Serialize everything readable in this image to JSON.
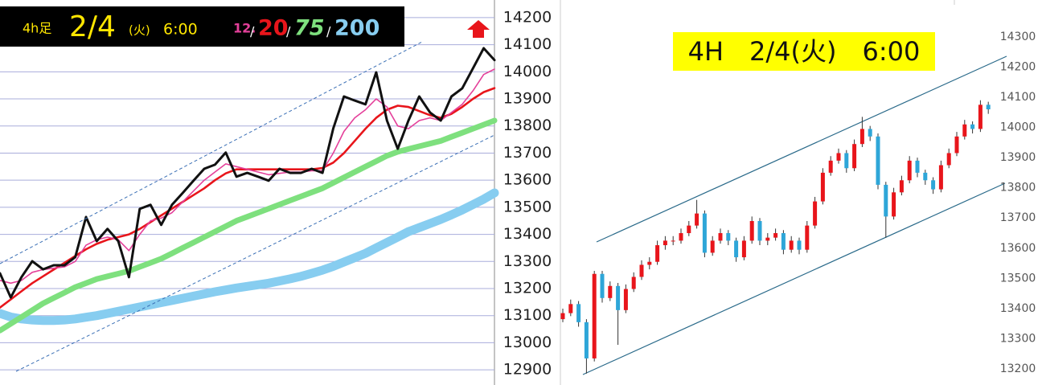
{
  "chart_data": [
    {
      "type": "line",
      "title_label": "4h足",
      "title_date": "2/4",
      "title_weekday": "(火)",
      "title_time": "6:00",
      "legend_separator": "/",
      "ylim": [
        12844,
        14265
      ],
      "yticks": [
        12900,
        13000,
        13100,
        13200,
        13300,
        13400,
        13500,
        13600,
        13700,
        13800,
        13900,
        14000,
        14100,
        14200
      ],
      "grid": true,
      "series": [
        {
          "color": "#111111",
          "values": [
            13256,
            13167,
            13242,
            13301,
            13271,
            13286,
            13286,
            13316,
            13464,
            13375,
            13420,
            13375,
            13242,
            13494,
            13509,
            13435,
            13509,
            13553,
            13598,
            13642,
            13657,
            13702,
            13613,
            13627,
            13613,
            13598,
            13642,
            13627,
            13627,
            13642,
            13627,
            13791,
            13909,
            13894,
            13880,
            13998,
            13820,
            13716,
            13820,
            13909,
            13850,
            13820,
            13909,
            13939,
            14013,
            14087,
            14043
          ]
        },
        {
          "name": "12.",
          "color": "#e4409a",
          "values": [
            13230,
            13220,
            13230,
            13260,
            13270,
            13275,
            13280,
            13300,
            13360,
            13380,
            13390,
            13380,
            13340,
            13400,
            13450,
            13460,
            13480,
            13520,
            13560,
            13600,
            13630,
            13660,
            13650,
            13640,
            13630,
            13620,
            13625,
            13630,
            13630,
            13635,
            13635,
            13700,
            13780,
            13830,
            13860,
            13900,
            13870,
            13800,
            13790,
            13820,
            13830,
            13820,
            13850,
            13880,
            13930,
            13990,
            14010
          ]
        },
        {
          "name": "20",
          "color": "#e8151b",
          "values": [
            13130,
            13160,
            13190,
            13220,
            13245,
            13270,
            13295,
            13320,
            13345,
            13365,
            13380,
            13390,
            13400,
            13420,
            13445,
            13470,
            13495,
            13520,
            13545,
            13570,
            13600,
            13625,
            13640,
            13640,
            13640,
            13640,
            13640,
            13640,
            13640,
            13640,
            13645,
            13665,
            13700,
            13745,
            13790,
            13830,
            13860,
            13875,
            13870,
            13855,
            13840,
            13830,
            13845,
            13870,
            13900,
            13925,
            13940
          ]
        },
        {
          "name": "75",
          "color": "#7ee07e",
          "values": [
            13045,
            13070,
            13095,
            13120,
            13145,
            13165,
            13185,
            13205,
            13220,
            13235,
            13245,
            13255,
            13265,
            13280,
            13295,
            13310,
            13330,
            13350,
            13370,
            13390,
            13410,
            13430,
            13450,
            13465,
            13480,
            13495,
            13510,
            13525,
            13540,
            13555,
            13570,
            13590,
            13610,
            13630,
            13650,
            13670,
            13690,
            13705,
            13715,
            13725,
            13735,
            13745,
            13760,
            13775,
            13790,
            13805,
            13820
          ]
        },
        {
          "name": "200",
          "color": "#87cdf0",
          "values": [
            13108,
            13095,
            13088,
            13084,
            13082,
            13082,
            13084,
            13088,
            13094,
            13100,
            13108,
            13116,
            13124,
            13132,
            13140,
            13148,
            13156,
            13164,
            13172,
            13180,
            13188,
            13195,
            13202,
            13208,
            13214,
            13220,
            13228,
            13236,
            13245,
            13256,
            13268,
            13282,
            13298,
            13314,
            13330,
            13350,
            13370,
            13390,
            13410,
            13425,
            13440,
            13455,
            13472,
            13490,
            13510,
            13530,
            13553
          ]
        }
      ]
    },
    {
      "type": "candlestick",
      "title": "4H　2/4(火)　6:00",
      "ylim": [
        13147,
        14422
      ],
      "yticks": [
        13200,
        13300,
        13400,
        13500,
        13600,
        13700,
        13800,
        13900,
        14000,
        14100,
        14200,
        14300
      ],
      "grid": false,
      "up_color": "#e8151b",
      "down_color": "#2ea6d8",
      "open": [
        13365,
        13385,
        13415,
        13355,
        13235,
        13515,
        13435,
        13475,
        13395,
        13465,
        13505,
        13545,
        13555,
        13610,
        13625,
        13625,
        13650,
        13675,
        13715,
        13585,
        13625,
        13650,
        13625,
        13570,
        13625,
        13690,
        13625,
        13635,
        13650,
        13595,
        13625,
        13595,
        13675,
        13755,
        13850,
        13890,
        13915,
        13865,
        13945,
        13995,
        13970,
        13810,
        13705,
        13785,
        13825,
        13890,
        13850,
        13825,
        13795,
        13875,
        13915,
        13970,
        14010,
        13995,
        14075
      ],
      "high": [
        13400,
        13430,
        13425,
        13365,
        13525,
        13525,
        13490,
        13485,
        13480,
        13520,
        13560,
        13570,
        13625,
        13640,
        13640,
        13665,
        13690,
        13760,
        13725,
        13640,
        13665,
        13660,
        13635,
        13640,
        13705,
        13700,
        13650,
        13665,
        13660,
        13640,
        13635,
        13690,
        13770,
        13865,
        13905,
        13930,
        13925,
        13960,
        14035,
        14005,
        13980,
        13820,
        13800,
        13840,
        13905,
        13900,
        13860,
        13835,
        13890,
        13930,
        13985,
        14025,
        14020,
        14090,
        14085
      ],
      "low": [
        13355,
        13375,
        13340,
        13185,
        13225,
        13420,
        13425,
        13280,
        13385,
        13455,
        13495,
        13530,
        13545,
        13595,
        13610,
        13615,
        13640,
        13665,
        13570,
        13575,
        13615,
        13610,
        13555,
        13560,
        13615,
        13610,
        13610,
        13625,
        13580,
        13585,
        13580,
        13585,
        13665,
        13745,
        13840,
        13880,
        13850,
        13855,
        13935,
        13955,
        13795,
        13635,
        13695,
        13775,
        13815,
        13835,
        13810,
        13780,
        13785,
        13865,
        13905,
        13960,
        13980,
        13985,
        14045
      ],
      "close": [
        13385,
        13415,
        13355,
        13235,
        13515,
        13435,
        13475,
        13395,
        13465,
        13505,
        13545,
        13555,
        13610,
        13625,
        13625,
        13650,
        13675,
        13715,
        13585,
        13625,
        13650,
        13625,
        13570,
        13625,
        13690,
        13625,
        13635,
        13650,
        13595,
        13625,
        13595,
        13675,
        13755,
        13850,
        13890,
        13915,
        13865,
        13945,
        13995,
        13970,
        13810,
        13705,
        13785,
        13825,
        13890,
        13850,
        13825,
        13795,
        13875,
        13915,
        13970,
        14010,
        13995,
        14075,
        14060
      ]
    }
  ]
}
